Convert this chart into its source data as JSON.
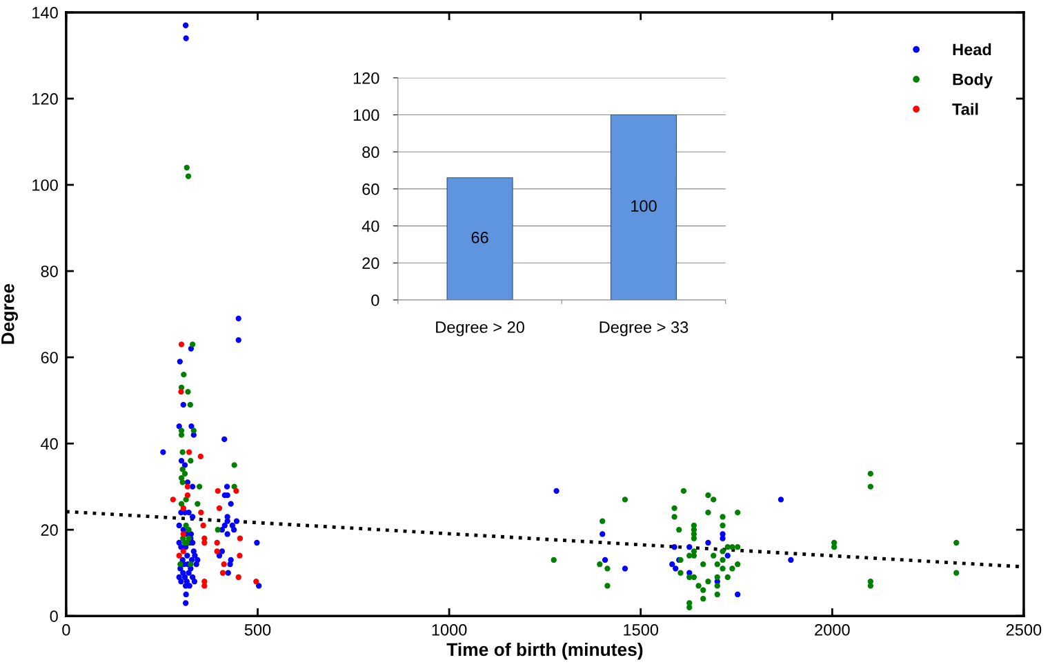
{
  "chart_data": [
    {
      "type": "scatter",
      "xlabel": "Time of birth (minutes)",
      "ylabel": "Degree",
      "xlim": [
        0,
        2500
      ],
      "ylim": [
        0,
        140
      ],
      "xticks": [
        0,
        500,
        1000,
        1500,
        2000,
        2500
      ],
      "yticks": [
        0,
        20,
        40,
        60,
        80,
        100,
        120,
        140
      ],
      "grid": false,
      "legend": "top right",
      "marker": "circle",
      "series": [
        {
          "name": "Head",
          "color": "#0000ff",
          "x": [
            312,
            313,
            450,
            450,
            326,
            297,
            306,
            295,
            327,
            333,
            413,
            253,
            301,
            310,
            317,
            330,
            420,
            414,
            421,
            430,
            300,
            310,
            320,
            330,
            421,
            421,
            445,
            295,
            414,
            434,
            407,
            421,
            438,
            295,
            325,
            330,
            498,
            407,
            400,
            430,
            428,
            343,
            423,
            503,
            313,
            312,
            298,
            305,
            310,
            315,
            320,
            325,
            330,
            335,
            300,
            308,
            318,
            340,
            295,
            312,
            322,
            328,
            304,
            316,
            336,
            300,
            312,
            322,
            333,
            306,
            316,
            326,
            1280,
            1400,
            1407,
            1459,
            1714,
            1714,
            1676,
            1588,
            1627,
            1727,
            1600,
            1582,
            1591,
            1627,
            1700,
            1753,
            1866,
            1892
          ],
          "values": [
            137,
            134,
            69,
            64,
            62,
            59,
            49,
            44,
            44,
            42,
            41,
            38,
            36,
            35,
            31,
            30,
            30,
            28,
            28,
            26,
            24,
            24,
            24,
            23,
            23,
            22,
            22,
            21,
            21,
            21,
            20,
            19,
            20,
            17,
            18,
            17,
            17,
            15,
            14,
            13,
            12,
            13,
            10,
            7,
            5,
            3,
            11,
            10,
            9,
            8,
            10,
            11,
            9,
            8,
            8,
            12,
            12,
            12,
            9,
            7,
            7,
            13,
            13,
            14,
            14,
            16,
            16,
            17,
            15,
            20,
            19,
            19,
            29,
            19,
            13,
            11,
            19,
            18,
            17,
            16,
            16,
            14,
            13,
            12,
            11,
            10,
            8,
            5,
            27,
            13
          ]
        },
        {
          "name": "Body",
          "color": "#008000",
          "x": [
            315,
            319,
            330,
            307,
            301,
            318,
            324,
            301,
            301,
            333,
            304,
            325,
            439,
            304,
            310,
            301,
            304,
            348,
            439,
            313,
            301,
            343,
            313,
            320,
            396,
            305,
            310,
            315,
            320,
            298,
            325,
            1459,
            1400,
            1273,
            1393,
            1413,
            1413,
            1612,
            1676,
            1690,
            1588,
            1588,
            1676,
            1753,
            1714,
            1714,
            1639,
            1639,
            1639,
            1639,
            1600,
            1727,
            1739,
            1753,
            1639,
            1714,
            1627,
            1639,
            1690,
            1604,
            1714,
            1663,
            1700,
            1753,
            1714,
            1739,
            1604,
            1627,
            1639,
            1700,
            1727,
            1676,
            1651,
            1700,
            1663,
            1700,
            1663,
            1627,
            1627,
            2005,
            2005,
            2100,
            2100,
            2100,
            2100,
            2324,
            2324
          ],
          "values": [
            104,
            102,
            63,
            56,
            53,
            52,
            49,
            43,
            42,
            43,
            38,
            36,
            35,
            34,
            33,
            32,
            31,
            30,
            30,
            27,
            26,
            26,
            21,
            20,
            20,
            18,
            17,
            17,
            18,
            12,
            12,
            27,
            22,
            13,
            12,
            11,
            7,
            29,
            28,
            27,
            25,
            23,
            24,
            24,
            23,
            21,
            21,
            20,
            19,
            18,
            20,
            16,
            16,
            16,
            15,
            15,
            14,
            14,
            14,
            13,
            13,
            12,
            12,
            12,
            11,
            11,
            10,
            9,
            9,
            9,
            9,
            8,
            7,
            7,
            6,
            5,
            4,
            3,
            2,
            17,
            16,
            33,
            30,
            8,
            7,
            17,
            10
          ]
        },
        {
          "name": "Tail",
          "color": "#ff0000",
          "x": [
            301,
            300,
            321,
            351,
            317,
            444,
            396,
            317,
            279,
            306,
            400,
            352,
            358,
            306,
            454,
            361,
            361,
            394,
            394,
            306,
            295,
            453,
            412,
            409,
            450,
            361,
            361,
            496
          ],
          "values": [
            63,
            52,
            38,
            37,
            30,
            29,
            29,
            28,
            27,
            25,
            25,
            24,
            21,
            19,
            18,
            18,
            17,
            17,
            15,
            15,
            14,
            14,
            12,
            10,
            9,
            8,
            7,
            8
          ]
        },
        {
          "type": "line",
          "color": "#000000",
          "line_style": "dotted",
          "marker": "none",
          "x": [
            0,
            2500
          ],
          "values": [
            24.2,
            11.4
          ]
        }
      ]
    },
    {
      "type": "bar",
      "categories": [
        "Degree > 20",
        "Degree > 33"
      ],
      "values": [
        66,
        100
      ],
      "color": "#5f95de",
      "ylim": [
        0,
        120
      ],
      "yticks": [
        0,
        20,
        40,
        60,
        80,
        100,
        120
      ],
      "grid": "y",
      "data_labels": true
    }
  ]
}
